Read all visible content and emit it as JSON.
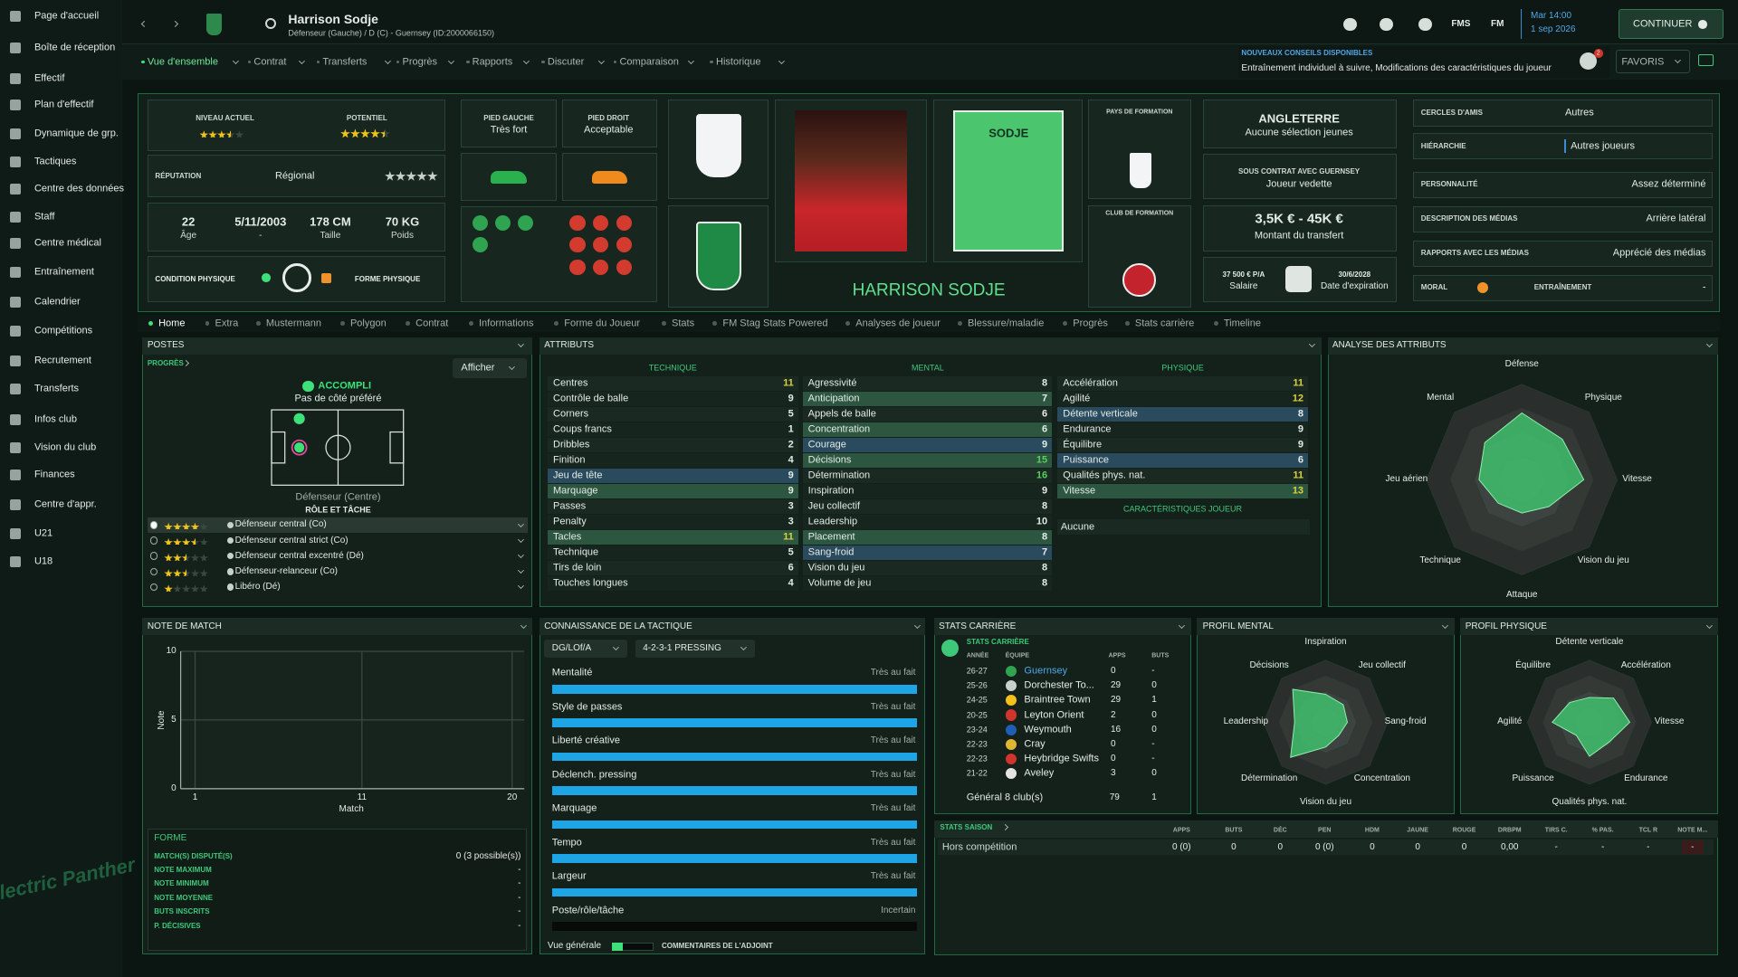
{
  "sidebar": {
    "items": [
      "Page d'accueil",
      "Boîte de réception",
      "Effectif",
      "Plan d'effectif",
      "Dynamique de grp.",
      "Tactiques",
      "Centre des données",
      "Staff",
      "Centre médical",
      "Entraînement",
      "Calendrier",
      "Compétitions",
      "Recrutement",
      "Transferts",
      "Infos club",
      "Vision du club",
      "Finances",
      "Centre d'appr.",
      "U21",
      "U18"
    ],
    "logo": "Electric Panther"
  },
  "header": {
    "name": "Harrison Sodje",
    "subtitle": "Défenseur (Gauche) / D (C) - Guernsey (ID:2000066150)",
    "icon_labels": [
      "FMS",
      "FM"
    ],
    "time": "Mar 14:00",
    "date": "1 sep 2026",
    "continue_button": "CONTINUER"
  },
  "nav": {
    "tabs": [
      "Vue d'ensemble",
      "Contrat",
      "Transferts",
      "Progrès",
      "Rapports",
      "Discuter",
      "Comparaison",
      "Historique"
    ],
    "advice": {
      "title": "NOUVEAUX CONSEILS DISPONIBLES",
      "text": "Entraînement individuel à suivre, Modifications des caractéristiques du joueur",
      "count": 2
    },
    "favorites": "FAVORIS"
  },
  "profile": {
    "star_scale": 5,
    "current_ability": {
      "label": "NIVEAU ACTUEL",
      "stars": 3.5
    },
    "potential": {
      "label": "POTENTIEL",
      "stars": 4.5
    },
    "reputation": {
      "label": "RÉPUTATION",
      "value": "Régional",
      "stars": 5,
      "star_color": "#c9d1cd"
    },
    "facts": [
      {
        "value": "22",
        "label": "Âge"
      },
      {
        "value": "5/11/2003",
        "label": "-"
      },
      {
        "value": "178 CM",
        "label": "Taille"
      },
      {
        "value": "70 KG",
        "label": "Poids"
      }
    ],
    "condition": "CONDITION PHYSIQUE",
    "form": "FORME PHYSIQUE",
    "left_foot": {
      "label": "PIED GAUCHE",
      "value": "Très fort"
    },
    "right_foot": {
      "label": "PIED DROIT",
      "value": "Acceptable"
    },
    "shirt_name": "SODJE",
    "full_name": "HARRISON SODJE",
    "nation_training": "PAYS DE FORMATION",
    "club_training": "CLUB DE FORMATION",
    "nation": {
      "title": "ANGLETERRE",
      "text": "Aucune sélection jeunes"
    },
    "contract": {
      "title": "SOUS CONTRAT AVEC GUERNSEY",
      "text": "Joueur vedette"
    },
    "transfer": {
      "value": "3,5K € - 45K €",
      "label": "Montant du transfert"
    },
    "wage": {
      "value": "37 500 € P/A",
      "label": "Salaire"
    },
    "expiry": {
      "value": "30/6/2028",
      "label": "Date d'expiration"
    },
    "info": [
      {
        "label": "CERCLES D'AMIS",
        "value": "Autres"
      },
      {
        "label": "HIÉRARCHIE",
        "value": "Autres joueurs"
      },
      {
        "label": "PERSONNALITÉ",
        "value": "Assez déterminé"
      },
      {
        "label": "DESCRIPTION DES MÉDIAS",
        "value": "Arrière latéral"
      },
      {
        "label": "RAPPORTS AVEC LES MÉDIAS",
        "value": "Apprécié des médias"
      }
    ],
    "morale": "MORAL",
    "training": {
      "label": "ENTRAÎNEMENT",
      "value": "-"
    }
  },
  "subtabs": [
    "Home",
    "Extra",
    "Mustermann",
    "Polygon",
    "Contrat",
    "Informations",
    "Forme du Joueur",
    "Stats",
    "FM Stag Stats Powered",
    "Analyses de joueur",
    "Blessure/maladie",
    "Progrès",
    "Stats carrière",
    "Timeline"
  ],
  "positions": {
    "title": "POSTES",
    "link": "PROGRÈS",
    "button": "Afficher",
    "status": "ACCOMPLI",
    "side": "Pas de côté préféré",
    "position": "Défenseur (Centre)",
    "roles_title": "RÔLE ET TÂCHE",
    "roles": [
      {
        "name": "Défenseur central (Co)",
        "stars": 4
      },
      {
        "name": "Défenseur central strict (Co)",
        "stars": 3.5
      },
      {
        "name": "Défenseur central excentré (Dé)",
        "stars": 2.5
      },
      {
        "name": "Défenseur-relanceur (Co)",
        "stars": 2.5
      },
      {
        "name": "Libéro (Dé)",
        "stars": 1
      }
    ]
  },
  "attributes": {
    "title": "ATTRIBUTS",
    "groups": [
      {
        "title": "TECHNIQUE",
        "items": [
          {
            "name": "Centres",
            "value": 11
          },
          {
            "name": "Contrôle de balle",
            "value": 9
          },
          {
            "name": "Corners",
            "value": 5
          },
          {
            "name": "Coups francs",
            "value": 1
          },
          {
            "name": "Dribbles",
            "value": 2
          },
          {
            "name": "Finition",
            "value": 4
          },
          {
            "name": "Jeu de tête",
            "value": 9,
            "highlight": "#2a4a5e"
          },
          {
            "name": "Marquage",
            "value": 9,
            "highlight": "#2d5641"
          },
          {
            "name": "Passes",
            "value": 3
          },
          {
            "name": "Penalty",
            "value": 3
          },
          {
            "name": "Tacles",
            "value": 11,
            "highlight": "#2d5641"
          },
          {
            "name": "Technique",
            "value": 5
          },
          {
            "name": "Tirs de loin",
            "value": 6
          },
          {
            "name": "Touches longues",
            "value": 4
          }
        ]
      },
      {
        "title": "MENTAL",
        "items": [
          {
            "name": "Agressivité",
            "value": 8
          },
          {
            "name": "Anticipation",
            "value": 7,
            "highlight": "#2d5641"
          },
          {
            "name": "Appels de balle",
            "value": 6
          },
          {
            "name": "Concentration",
            "value": 6,
            "highlight": "#2d5641"
          },
          {
            "name": "Courage",
            "value": 9,
            "highlight": "#2a4a5e"
          },
          {
            "name": "Décisions",
            "value": 15,
            "highlight": "#2d5641"
          },
          {
            "name": "Détermination",
            "value": 16
          },
          {
            "name": "Inspiration",
            "value": 9
          },
          {
            "name": "Jeu collectif",
            "value": 8
          },
          {
            "name": "Leadership",
            "value": 10
          },
          {
            "name": "Placement",
            "value": 8,
            "highlight": "#2d5641"
          },
          {
            "name": "Sang-froid",
            "value": 7,
            "highlight": "#2a4a5e"
          },
          {
            "name": "Vision du jeu",
            "value": 8
          },
          {
            "name": "Volume de jeu",
            "value": 8
          }
        ]
      },
      {
        "title": "PHYSIQUE",
        "items": [
          {
            "name": "Accélération",
            "value": 11
          },
          {
            "name": "Agilité",
            "value": 12
          },
          {
            "name": "Détente verticale",
            "value": 8,
            "highlight": "#2a4a5e"
          },
          {
            "name": "Endurance",
            "value": 9
          },
          {
            "name": "Équilibre",
            "value": 9
          },
          {
            "name": "Puissance",
            "value": 6,
            "highlight": "#2a4a5e"
          },
          {
            "name": "Qualités phys. nat.",
            "value": 11
          },
          {
            "name": "Vitesse",
            "value": 13,
            "highlight": "#2d5641"
          }
        ]
      }
    ],
    "traits_title": "CARACTÉRISTIQUES JOUEUR",
    "traits": [
      "Aucune"
    ]
  },
  "attribute_analysis": {
    "title": "ANALYSE DES ATTRIBUTS",
    "type": "radar",
    "labels": [
      "Défense",
      "Physique",
      "Vitesse",
      "Vision du jeu",
      "Attaque",
      "Technique",
      "Jeu aérien",
      "Mental"
    ],
    "values": [
      14,
      12,
      13,
      8,
      7,
      7,
      9,
      11
    ],
    "rlim": [
      0,
      20
    ],
    "color": "#3fbf6c"
  },
  "match_rating": {
    "title": "NOTE DE MATCH",
    "type": "line",
    "y_label": "Note",
    "x_label": "Match",
    "ylim": [
      0,
      10
    ],
    "yticks": [
      0,
      5,
      10
    ],
    "xlim": [
      1,
      20
    ],
    "xticks": [
      1,
      11,
      20
    ],
    "grid": true
  },
  "form": {
    "title": "FORME",
    "rows": [
      {
        "label": "MATCH(S) DISPUTÉ(S)",
        "value": "0 (3 possible(s))"
      },
      {
        "label": "NOTE MAXIMUM",
        "value": "-"
      },
      {
        "label": "NOTE MINIMUM",
        "value": "-"
      },
      {
        "label": "NOTE MOYENNE",
        "value": "-"
      },
      {
        "label": "BUTS INSCRITS",
        "value": "-"
      },
      {
        "label": "P. DÉCISIVES",
        "value": "-"
      }
    ]
  },
  "tactics": {
    "title": "CONNAISSANCE DE LA TACTIQUE",
    "role": "DG/LOf/A",
    "formation": "4-2-3-1 PRESSING",
    "lim": [
      0,
      100
    ],
    "color": "#1ea5e6",
    "rows": [
      {
        "label": "Mentalité",
        "level": "Très au fait",
        "value": 100
      },
      {
        "label": "Style de passes",
        "level": "Très au fait",
        "value": 100
      },
      {
        "label": "Liberté créative",
        "level": "Très au fait",
        "value": 100
      },
      {
        "label": "Déclench. pressing",
        "level": "Très au fait",
        "value": 100
      },
      {
        "label": "Marquage",
        "level": "Très au fait",
        "value": 100
      },
      {
        "label": "Tempo",
        "level": "Très au fait",
        "value": 100
      },
      {
        "label": "Largeur",
        "level": "Très au fait",
        "value": 100
      },
      {
        "label": "Poste/rôle/tâche",
        "level": "Incertain",
        "value": 0
      }
    ],
    "overview": {
      "label": "Vue générale",
      "value": 25
    },
    "comments": "COMMENTAIRES DE L'ADJOINT"
  },
  "career": {
    "title": "STATS CARRIÈRE",
    "link": "STATS CARRIÈRE",
    "columns": [
      "ANNÉE",
      "ÉQUIPE",
      "APPS",
      "BUTS"
    ],
    "rows": [
      [
        "26-27",
        "Guernsey",
        0,
        "-"
      ],
      [
        "25-26",
        "Dorchester To...",
        29,
        0
      ],
      [
        "24-25",
        "Braintree Town",
        29,
        1
      ],
      [
        "20-25",
        "Leyton Orient",
        2,
        0
      ],
      [
        "23-24",
        "Weymouth",
        16,
        0
      ],
      [
        "22-23",
        "Cray",
        0,
        "-"
      ],
      [
        "22-23",
        "Heybridge Swifts",
        0,
        "-"
      ],
      [
        "21-22",
        "Aveley",
        3,
        0
      ]
    ],
    "total": [
      "Général 8 club(s)",
      79,
      1
    ]
  },
  "mental_profile": {
    "title": "PROFIL MENTAL",
    "type": "radar",
    "labels": [
      "Inspiration",
      "Jeu collectif",
      "Sang-froid",
      "Concentration",
      "Vision du jeu",
      "Détermination",
      "Leadership",
      "Décisions"
    ],
    "values": [
      9,
      8,
      7,
      6,
      8,
      16,
      10,
      15
    ],
    "rlim": [
      0,
      20
    ],
    "color": "#3fbf6c"
  },
  "physical_profile": {
    "title": "PROFIL PHYSIQUE",
    "type": "radar",
    "labels": [
      "Détente verticale",
      "Accélération",
      "Vitesse",
      "Endurance",
      "Qualités phys. nat.",
      "Puissance",
      "Agilité",
      "Équilibre"
    ],
    "values": [
      8,
      11,
      13,
      9,
      11,
      6,
      12,
      9
    ],
    "rlim": [
      0,
      20
    ],
    "color": "#3fbf6c"
  },
  "season": {
    "title": "STATS SAISON",
    "columns": [
      "APPS",
      "BUTS",
      "DÉC",
      "PEN",
      "HDM",
      "JAUNE",
      "ROUGE",
      "DRBPM",
      "TIRS C.",
      "% PAS.",
      "TCL R",
      "NOTE M..."
    ],
    "rows": [
      {
        "name": "Hors compétition",
        "cells": [
          "0 (0)",
          0,
          0,
          "0 (0)",
          0,
          0,
          0,
          "0,00",
          "-",
          "-",
          "-",
          "-"
        ]
      }
    ]
  }
}
